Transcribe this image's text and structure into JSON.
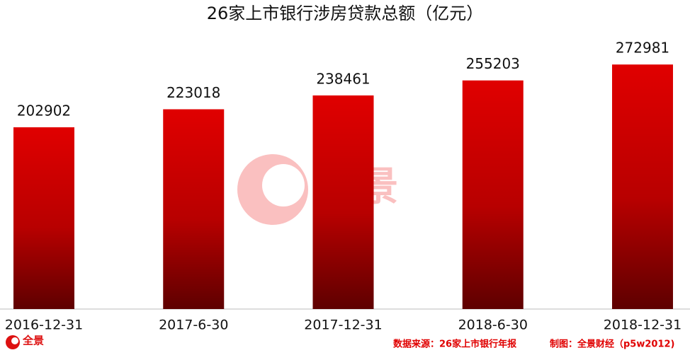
{
  "chart_data": {
    "type": "bar",
    "title": "26家上市银行涉房贷款总额（亿元）",
    "categories": [
      "2016-12-31",
      "2017-6-30",
      "2017-12-31",
      "2018-6-30",
      "2018-12-31"
    ],
    "values": [
      202902,
      223018,
      238461,
      255203,
      272981
    ],
    "color": "#e00000",
    "ylim": [
      0,
      300000
    ],
    "source": "数据来源：26家上市银行年报",
    "credit": "制图：全景财经（p5w2012)",
    "watermark": "全景",
    "logo": "全景"
  }
}
